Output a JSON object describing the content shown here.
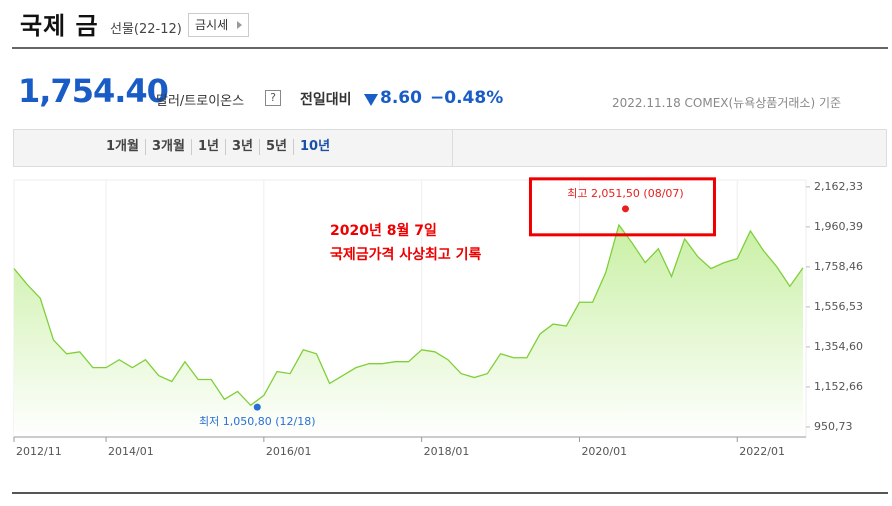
{
  "header": {
    "title": "국제 금",
    "subtitle": "선물(22-12)",
    "button": "금시세"
  },
  "price": {
    "value": "1,754.40",
    "unit": "달러/트로이온스",
    "help": "?",
    "change_label": "전일대비",
    "change": "8.60",
    "change_pct": "−0.48%",
    "source": "2022.11.18 COMEX(뉴욕상품거래소) 기준"
  },
  "tabs": [
    "1개월",
    "3개월",
    "1년",
    "3년",
    "5년",
    "10년"
  ],
  "selected_tab": 5,
  "chart_data": {
    "type": "area",
    "color": "#7fcf3a",
    "fill": "#c9f0a4",
    "grid": "x",
    "x": [
      "2012/11",
      "2013/01",
      "2013/03",
      "2013/05",
      "2013/07",
      "2013/09",
      "2013/11",
      "2014/01",
      "2014/03",
      "2014/05",
      "2014/07",
      "2014/09",
      "2014/11",
      "2015/01",
      "2015/03",
      "2015/05",
      "2015/07",
      "2015/09",
      "2015/11",
      "2016/01",
      "2016/03",
      "2016/05",
      "2016/07",
      "2016/09",
      "2016/11",
      "2017/01",
      "2017/03",
      "2017/05",
      "2017/07",
      "2017/09",
      "2017/11",
      "2018/01",
      "2018/03",
      "2018/05",
      "2018/07",
      "2018/09",
      "2018/11",
      "2019/01",
      "2019/03",
      "2019/05",
      "2019/07",
      "2019/09",
      "2019/11",
      "2020/01",
      "2020/03",
      "2020/05",
      "2020/07",
      "2020/09",
      "2020/11",
      "2021/01",
      "2021/03",
      "2021/05",
      "2021/07",
      "2021/09",
      "2021/11",
      "2022/01",
      "2022/03",
      "2022/05",
      "2022/07",
      "2022/09",
      "2022/11"
    ],
    "values": [
      1750,
      1670,
      1600,
      1390,
      1320,
      1330,
      1250,
      1250,
      1290,
      1250,
      1290,
      1210,
      1180,
      1280,
      1190,
      1190,
      1090,
      1130,
      1060,
      1110,
      1230,
      1220,
      1340,
      1320,
      1170,
      1210,
      1250,
      1270,
      1270,
      1280,
      1280,
      1340,
      1330,
      1290,
      1220,
      1200,
      1220,
      1320,
      1300,
      1300,
      1420,
      1470,
      1460,
      1580,
      1580,
      1730,
      1970,
      1880,
      1780,
      1850,
      1710,
      1900,
      1810,
      1750,
      1780,
      1800,
      1940,
      1840,
      1760,
      1660,
      1754.4
    ],
    "xticks": [
      "2012/11",
      "2014/01",
      "2016/01",
      "2018/01",
      "2020/01",
      "2022/01"
    ],
    "ylim": [
      900,
      2197
    ],
    "yticks": [
      {
        "value": 950.73,
        "label": "950,73"
      },
      {
        "value": 1152.66,
        "label": "1,152,66"
      },
      {
        "value": 1354.6,
        "label": "1,354,60"
      },
      {
        "value": 1556.53,
        "label": "1,556,53"
      },
      {
        "value": 1758.46,
        "label": "1,758,46"
      },
      {
        "value": 1960.39,
        "label": "1,960,39"
      },
      {
        "value": 2162.33,
        "label": "2,162,33"
      }
    ],
    "high": {
      "x": "2020/08",
      "value": 2051.5,
      "label": "최고 2,051,50 (08/07)"
    },
    "low": {
      "x": "2015/12",
      "value": 1050.8,
      "label": "최저 1,050,80 (12/18)"
    },
    "annotations": [
      "2020년 8월 7일",
      "국제금가격 사상최고 기록"
    ]
  }
}
